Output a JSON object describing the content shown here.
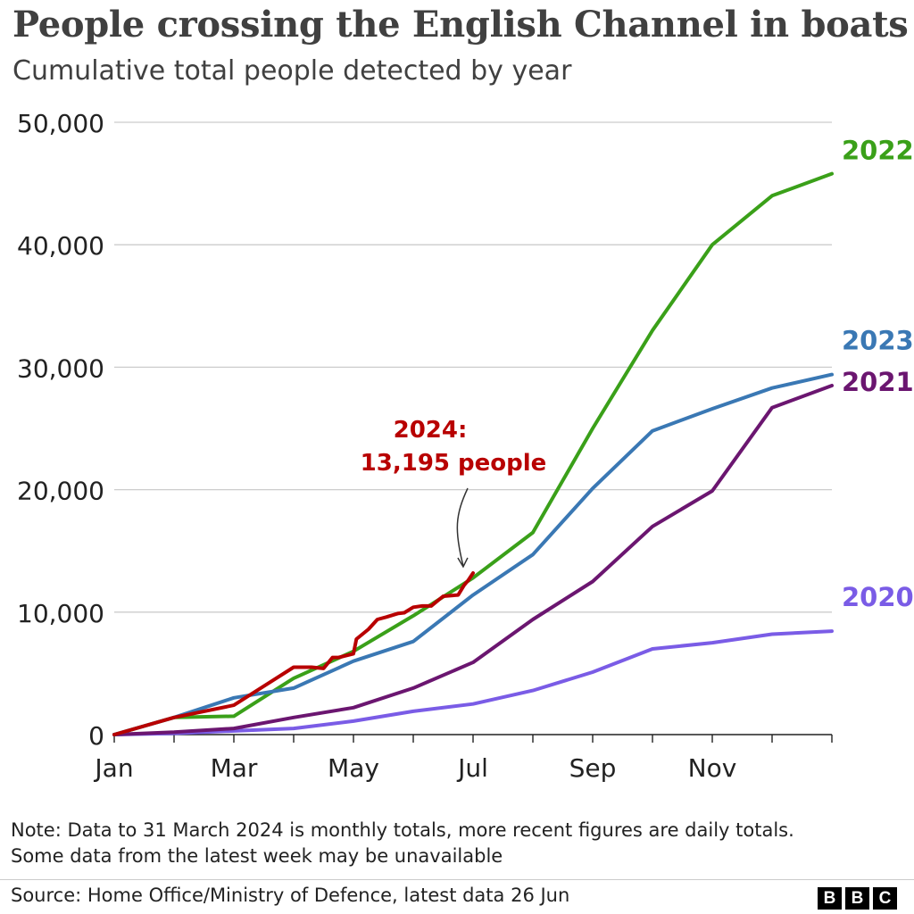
{
  "header": {
    "title": "People crossing the English Channel in boats",
    "subtitle": "Cumulative total people detected by year"
  },
  "chart_data": {
    "type": "line",
    "title": "People crossing the English Channel in boats",
    "subtitle": "Cumulative total people detected by year",
    "xlabel": "",
    "ylabel": "",
    "ylim": [
      0,
      50000
    ],
    "yticks": [
      0,
      10000,
      20000,
      30000,
      40000,
      50000
    ],
    "ytick_labels": [
      "0",
      "10,000",
      "20,000",
      "30,000",
      "40,000",
      "50,000"
    ],
    "xtick_labels": [
      {
        "label": "Jan",
        "month": 0
      },
      {
        "label": "Mar",
        "month": 2
      },
      {
        "label": "May",
        "month": 4
      },
      {
        "label": "Jul",
        "month": 6
      },
      {
        "label": "Sep",
        "month": 8
      },
      {
        "label": "Nov",
        "month": 10
      }
    ],
    "month_ticks": [
      0,
      1,
      2,
      3,
      4,
      5,
      6,
      7,
      8,
      9,
      10,
      11,
      12
    ],
    "grid": true,
    "series": [
      {
        "name": "2020",
        "color": "#7a5ce6",
        "x": [
          0,
          1,
          2,
          3,
          4,
          5,
          6,
          7,
          8,
          9,
          10,
          11,
          12
        ],
        "values": [
          0,
          100,
          300,
          500,
          1100,
          1900,
          2500,
          3600,
          5100,
          7000,
          7500,
          8200,
          8450
        ]
      },
      {
        "name": "2021",
        "color": "#6b1670",
        "x": [
          0,
          1,
          2,
          3,
          4,
          5,
          6,
          7,
          8,
          9,
          10,
          11,
          12
        ],
        "values": [
          0,
          200,
          500,
          1400,
          2200,
          3800,
          5900,
          9400,
          12500,
          17000,
          19900,
          26700,
          28500
        ]
      },
      {
        "name": "2022",
        "color": "#3aa019",
        "x": [
          0,
          1,
          2,
          3,
          4,
          5,
          6,
          7,
          8,
          9,
          10,
          11,
          12
        ],
        "values": [
          0,
          1400,
          1500,
          4600,
          6800,
          9700,
          12800,
          16500,
          25000,
          33000,
          40000,
          44000,
          45800
        ]
      },
      {
        "name": "2023",
        "color": "#3a78b4",
        "x": [
          0,
          1,
          2,
          3,
          4,
          5,
          6,
          7,
          8,
          9,
          10,
          11,
          12
        ],
        "values": [
          0,
          1400,
          3000,
          3800,
          6000,
          7600,
          11400,
          14700,
          20100,
          24800,
          26600,
          28300,
          29400
        ]
      },
      {
        "name": "2024",
        "color": "#b80000",
        "x": [
          0,
          1,
          2,
          3,
          3.3,
          3.5,
          3.65,
          3.75,
          4.0,
          4.05,
          4.25,
          4.4,
          4.55,
          4.75,
          4.85,
          5.0,
          5.15,
          5.3,
          5.5,
          5.75,
          5.85,
          5.92,
          6.0
        ],
        "values": [
          0,
          1400,
          2400,
          5500,
          5500,
          5400,
          6300,
          6300,
          6600,
          7800,
          8600,
          9400,
          9600,
          9900,
          9950,
          10400,
          10500,
          10500,
          11300,
          11400,
          12200,
          12600,
          13195
        ]
      }
    ],
    "annotations": [
      {
        "lines": [
          "2024:",
          "13,195 people"
        ],
        "series": "2024",
        "month": 5.82,
        "value": 13195,
        "color": "#b80000"
      }
    ]
  },
  "footer": {
    "note_line1": "Note: Data to 31 March 2024 is monthly totals, more recent figures are daily totals.",
    "note_line2": "Some data from the latest week may be unavailable",
    "source": "Source: Home Office/Ministry of Defence, latest data 26 Jun",
    "logo_letters": [
      "B",
      "B",
      "C"
    ]
  }
}
